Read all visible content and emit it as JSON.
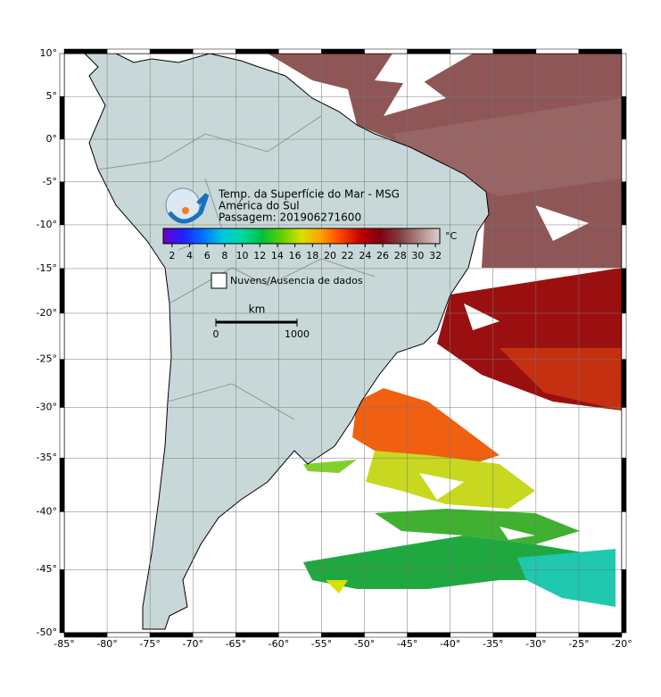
{
  "header": {
    "title": "Temp. da Superfície do Mar - MSG",
    "region": "América do Sul",
    "pass": "Passagem: 201906271600"
  },
  "colorbar": {
    "unit": "°C",
    "lim": [
      1,
      32.5
    ],
    "ticks": [
      2,
      4,
      6,
      8,
      10,
      12,
      14,
      16,
      18,
      20,
      22,
      24,
      26,
      28,
      30,
      32
    ],
    "colors": [
      "#6a00c8",
      "#2020ff",
      "#0070ff",
      "#00c8e0",
      "#00d8a0",
      "#00c040",
      "#60d000",
      "#d8e000",
      "#ffa000",
      "#ff4000",
      "#c00000",
      "#800010",
      "#804040",
      "#b08888",
      "#e0d0d0"
    ]
  },
  "legend": {
    "no_data": "Nuvens/Ausencia de dados"
  },
  "scale_bar": {
    "unit": "km",
    "ticks": [
      0,
      1000
    ]
  },
  "map": {
    "lonlim": [
      -85,
      -20
    ],
    "latlim": [
      -50,
      10
    ],
    "grid": true,
    "lonticks": [
      {
        "value": -85,
        "label": "-85°"
      },
      {
        "value": -80,
        "label": "-80°"
      },
      {
        "value": -75,
        "label": "-75°"
      },
      {
        "value": -70,
        "label": "-70°"
      },
      {
        "value": -65,
        "label": "-65°"
      },
      {
        "value": -60,
        "label": "-60°"
      },
      {
        "value": -55,
        "label": "-55°"
      },
      {
        "value": -50,
        "label": "-50°"
      },
      {
        "value": -45,
        "label": "-45°"
      },
      {
        "value": -40,
        "label": "-40°"
      },
      {
        "value": -35,
        "label": "-35°"
      },
      {
        "value": -30,
        "label": "-30°"
      },
      {
        "value": -25,
        "label": "-25°"
      },
      {
        "value": -20,
        "label": "-20°"
      }
    ],
    "latticks": [
      {
        "value": 10,
        "label": "10°"
      },
      {
        "value": 5,
        "label": "5°"
      },
      {
        "value": 0,
        "label": "0°"
      },
      {
        "value": -5,
        "label": "-5°"
      },
      {
        "value": -10,
        "label": "-10°"
      },
      {
        "value": -15,
        "label": "-15°"
      },
      {
        "value": -20,
        "label": "-20°"
      },
      {
        "value": -25,
        "label": "-25°"
      },
      {
        "value": -30,
        "label": "-30°"
      },
      {
        "value": -35,
        "label": "-35°"
      },
      {
        "value": -40,
        "label": "-40°"
      },
      {
        "value": -45,
        "label": "-45°"
      },
      {
        "value": -50,
        "label": "-50°"
      }
    ]
  }
}
